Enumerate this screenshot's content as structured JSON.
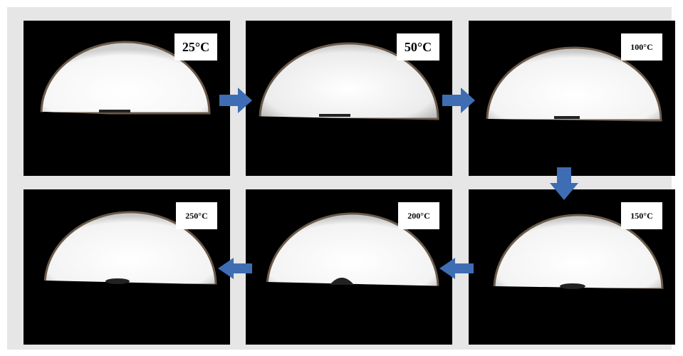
{
  "figure": {
    "panels": [
      {
        "label": "25°C"
      },
      {
        "label": "50°C"
      },
      {
        "label": "100°C"
      },
      {
        "label": "150°C"
      },
      {
        "label": "200°C"
      },
      {
        "label": "250°C"
      }
    ],
    "colors": {
      "background": "#e6e6e6",
      "arrow": "#3e6db3",
      "panel": "#000000",
      "light": "#fafafa"
    }
  }
}
